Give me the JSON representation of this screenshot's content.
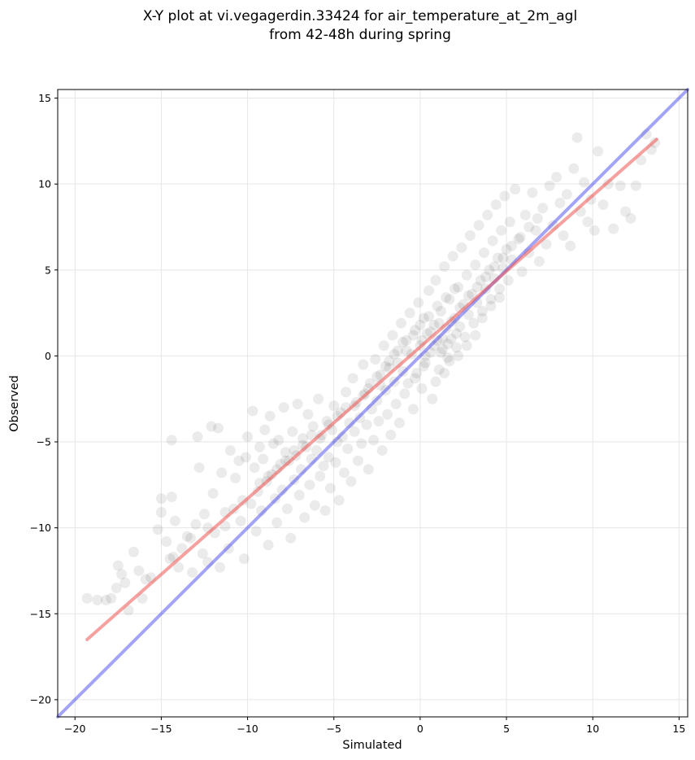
{
  "chart_data": {
    "type": "scatter",
    "title": "X-Y plot at vi.vegagerdin.33424 for air_temperature_at_2m_agl",
    "subtitle": "from 42-48h during spring",
    "xlabel": "Simulated",
    "ylabel": "Observed",
    "xlim": [
      -21,
      15.5
    ],
    "ylim": [
      -21,
      15.5
    ],
    "xticks": [
      -20,
      -15,
      -10,
      -5,
      0,
      5,
      10,
      15
    ],
    "yticks": [
      -20,
      -15,
      -10,
      -5,
      0,
      5,
      10,
      15
    ],
    "xtick_labels": [
      "−20",
      "−15",
      "−10",
      "−5",
      "0",
      "5",
      "10",
      "15"
    ],
    "ytick_labels": [
      "−20",
      "−15",
      "−10",
      "−5",
      "0",
      "5",
      "10",
      "15"
    ],
    "grid": true,
    "point_color": "#000000",
    "point_opacity": 0.08,
    "regression_line": {
      "color": "#ef5350",
      "from": [
        -19.3,
        -16.5
      ],
      "to": [
        13.7,
        12.6
      ]
    },
    "identity_line": {
      "color": "#3333ee",
      "from": [
        -21,
        -21
      ],
      "to": [
        15.5,
        15.5
      ]
    },
    "points": [
      [
        -19.3,
        -14.1
      ],
      [
        -18.7,
        -14.2
      ],
      [
        -18.2,
        -14.2
      ],
      [
        -17.9,
        -14.1
      ],
      [
        -17.6,
        -13.5
      ],
      [
        -17.5,
        -12.2
      ],
      [
        -17.3,
        -12.7
      ],
      [
        -17.1,
        -13.2
      ],
      [
        -16.9,
        -14.8
      ],
      [
        -16.6,
        -11.4
      ],
      [
        -16.3,
        -12.5
      ],
      [
        -16.1,
        -14.1
      ],
      [
        -15.9,
        -13.0
      ],
      [
        -15.6,
        -12.9
      ],
      [
        -15.2,
        -10.1
      ],
      [
        -15.0,
        -8.3
      ],
      [
        -15.0,
        -9.1
      ],
      [
        -14.7,
        -10.8
      ],
      [
        -14.5,
        -11.8
      ],
      [
        -14.4,
        -8.2
      ],
      [
        -14.4,
        -4.9
      ],
      [
        -14.2,
        -9.6
      ],
      [
        -14.0,
        -12.3
      ],
      [
        -13.8,
        -11.2
      ],
      [
        -13.5,
        -10.5
      ],
      [
        -13.2,
        -12.6
      ],
      [
        -13.0,
        -9.8
      ],
      [
        -12.9,
        -4.7
      ],
      [
        -12.8,
        -6.5
      ],
      [
        -12.6,
        -11.5
      ],
      [
        -12.5,
        -9.2
      ],
      [
        -12.3,
        -12.0
      ],
      [
        -12.1,
        -4.1
      ],
      [
        -12.0,
        -8.0
      ],
      [
        -11.9,
        -10.3
      ],
      [
        -11.7,
        -4.2
      ],
      [
        -11.6,
        -12.3
      ],
      [
        -11.5,
        -6.8
      ],
      [
        -11.3,
        -9.9
      ],
      [
        -11.1,
        -11.2
      ],
      [
        -11.0,
        -5.5
      ],
      [
        -10.8,
        -8.9
      ],
      [
        -10.7,
        -7.1
      ],
      [
        -10.5,
        -6.1
      ],
      [
        -10.4,
        -9.6
      ],
      [
        -10.2,
        -11.8
      ],
      [
        -10.1,
        -5.9
      ],
      [
        -10.0,
        -4.7
      ],
      [
        -9.8,
        -8.6
      ],
      [
        -9.7,
        -3.2
      ],
      [
        -9.6,
        -6.5
      ],
      [
        -9.5,
        -10.2
      ],
      [
        -9.4,
        -7.9
      ],
      [
        -9.3,
        -5.3
      ],
      [
        -9.2,
        -9.0
      ],
      [
        -9.1,
        -6.0
      ],
      [
        -9.0,
        -4.3
      ],
      [
        -8.9,
        -7.3
      ],
      [
        -8.8,
        -11.0
      ],
      [
        -8.7,
        -3.5
      ],
      [
        -8.6,
        -6.9
      ],
      [
        -8.5,
        -5.1
      ],
      [
        -8.4,
        -8.3
      ],
      [
        -8.3,
        -9.7
      ],
      [
        -8.2,
        -4.9
      ],
      [
        -8.1,
        -6.3
      ],
      [
        -8.0,
        -7.8
      ],
      [
        -7.9,
        -3.0
      ],
      [
        -7.8,
        -5.6
      ],
      [
        -7.7,
        -8.9
      ],
      [
        -7.6,
        -6.1
      ],
      [
        -7.5,
        -10.6
      ],
      [
        -7.4,
        -4.4
      ],
      [
        -7.3,
        -7.2
      ],
      [
        -7.2,
        -5.8
      ],
      [
        -7.1,
        -2.8
      ],
      [
        -7.0,
        -8.1
      ],
      [
        -6.9,
        -6.6
      ],
      [
        -6.8,
        -4.8
      ],
      [
        -6.7,
        -9.4
      ],
      [
        -6.6,
        -5.3
      ],
      [
        -6.5,
        -3.4
      ],
      [
        -6.4,
        -7.5
      ],
      [
        -6.3,
        -6.0
      ],
      [
        -6.2,
        -4.1
      ],
      [
        -6.1,
        -8.7
      ],
      [
        -6.0,
        -5.5
      ],
      [
        -5.9,
        -2.5
      ],
      [
        -5.8,
        -7.0
      ],
      [
        -5.7,
        -4.6
      ],
      [
        -5.6,
        -6.4
      ],
      [
        -5.5,
        -9.0
      ],
      [
        -5.4,
        -3.8
      ],
      [
        -5.3,
        -5.9
      ],
      [
        -5.2,
        -7.7
      ],
      [
        -5.1,
        -4.3
      ],
      [
        -5.0,
        -2.9
      ],
      [
        -4.9,
        -6.2
      ],
      [
        -4.8,
        -5.0
      ],
      [
        -4.7,
        -8.4
      ],
      [
        -4.6,
        -3.3
      ],
      [
        -4.5,
        -4.7
      ],
      [
        -4.4,
        -6.8
      ],
      [
        -4.3,
        -2.1
      ],
      [
        -4.2,
        -5.4
      ],
      [
        -4.1,
        -3.9
      ],
      [
        -4.0,
        -7.3
      ],
      [
        -3.9,
        -1.3
      ],
      [
        -3.8,
        -4.4
      ],
      [
        -3.7,
        -2.7
      ],
      [
        -3.6,
        -6.1
      ],
      [
        -3.5,
        -3.6
      ],
      [
        -3.4,
        -5.1
      ],
      [
        -3.3,
        -0.5
      ],
      [
        -3.2,
        -2.2
      ],
      [
        -3.1,
        -4.0
      ],
      [
        -3.0,
        -6.6
      ],
      [
        -2.9,
        -1.6
      ],
      [
        -2.8,
        -3.1
      ],
      [
        -2.7,
        -4.9
      ],
      [
        -2.6,
        -0.2
      ],
      [
        -2.5,
        -2.6
      ],
      [
        -2.4,
        -3.8
      ],
      [
        -2.3,
        -1.1
      ],
      [
        -2.2,
        -5.5
      ],
      [
        -2.1,
        0.6
      ],
      [
        -2.0,
        -2.0
      ],
      [
        -1.9,
        -3.4
      ],
      [
        -1.8,
        -0.7
      ],
      [
        -1.7,
        -4.6
      ],
      [
        -1.6,
        1.2
      ],
      [
        -1.5,
        -1.5
      ],
      [
        -1.4,
        -2.8
      ],
      [
        -1.3,
        0.3
      ],
      [
        -1.2,
        -3.9
      ],
      [
        -1.1,
        1.9
      ],
      [
        -1.0,
        -0.9
      ],
      [
        -0.9,
        -2.2
      ],
      [
        -0.8,
        0.9
      ],
      [
        -0.7,
        -1.6
      ],
      [
        -0.6,
        2.5
      ],
      [
        -0.5,
        0.1
      ],
      [
        -0.4,
        -3.1
      ],
      [
        -0.3,
        1.5
      ],
      [
        -0.2,
        -1.0
      ],
      [
        -0.1,
        3.1
      ],
      [
        0.0,
        0.6
      ],
      [
        0.1,
        -1.9
      ],
      [
        0.2,
        2.2
      ],
      [
        0.3,
        -0.4
      ],
      [
        0.4,
        1.3
      ],
      [
        0.5,
        3.8
      ],
      [
        0.6,
        0.2
      ],
      [
        0.7,
        -2.5
      ],
      [
        0.8,
        1.8
      ],
      [
        0.9,
        4.4
      ],
      [
        1.0,
        0.9
      ],
      [
        1.1,
        -0.8
      ],
      [
        1.2,
        2.6
      ],
      [
        1.3,
        0.4
      ],
      [
        1.4,
        5.2
      ],
      [
        1.5,
        1.6
      ],
      [
        1.6,
        -0.1
      ],
      [
        1.7,
        3.3
      ],
      [
        1.8,
        1.0
      ],
      [
        1.9,
        5.8
      ],
      [
        2.0,
        2.2
      ],
      [
        2.1,
        0.5
      ],
      [
        2.2,
        4.0
      ],
      [
        2.3,
        1.7
      ],
      [
        2.4,
        6.3
      ],
      [
        2.5,
        3.0
      ],
      [
        2.6,
        1.1
      ],
      [
        2.7,
        4.7
      ],
      [
        2.8,
        2.4
      ],
      [
        2.9,
        7.0
      ],
      [
        3.0,
        3.6
      ],
      [
        3.1,
        1.9
      ],
      [
        3.2,
        5.3
      ],
      [
        3.3,
        3.1
      ],
      [
        3.4,
        7.6
      ],
      [
        3.5,
        4.4
      ],
      [
        3.6,
        2.6
      ],
      [
        3.7,
        6.0
      ],
      [
        3.8,
        3.9
      ],
      [
        3.9,
        8.2
      ],
      [
        4.0,
        5.0
      ],
      [
        4.1,
        3.3
      ],
      [
        4.2,
        6.7
      ],
      [
        4.3,
        4.5
      ],
      [
        4.4,
        8.8
      ],
      [
        4.5,
        5.7
      ],
      [
        4.6,
        3.9
      ],
      [
        4.7,
        7.3
      ],
      [
        4.8,
        5.1
      ],
      [
        4.9,
        9.3
      ],
      [
        5.0,
        6.2
      ],
      [
        5.1,
        4.4
      ],
      [
        5.2,
        7.8
      ],
      [
        5.3,
        5.6
      ],
      [
        5.5,
        9.7
      ],
      [
        5.7,
        6.8
      ],
      [
        5.9,
        4.9
      ],
      [
        6.1,
        8.2
      ],
      [
        6.3,
        6.0
      ],
      [
        6.5,
        9.5
      ],
      [
        6.7,
        7.3
      ],
      [
        6.9,
        5.5
      ],
      [
        7.1,
        8.6
      ],
      [
        7.3,
        6.5
      ],
      [
        7.5,
        9.9
      ],
      [
        7.7,
        7.6
      ],
      [
        7.9,
        10.4
      ],
      [
        8.1,
        8.9
      ],
      [
        8.3,
        7.0
      ],
      [
        8.5,
        9.4
      ],
      [
        8.7,
        6.4
      ],
      [
        8.9,
        10.9
      ],
      [
        9.1,
        12.7
      ],
      [
        9.3,
        8.4
      ],
      [
        9.5,
        10.1
      ],
      [
        9.7,
        7.8
      ],
      [
        9.9,
        9.1
      ],
      [
        10.1,
        7.3
      ],
      [
        10.3,
        11.9
      ],
      [
        10.6,
        8.8
      ],
      [
        10.9,
        10.0
      ],
      [
        11.2,
        7.4
      ],
      [
        11.6,
        9.9
      ],
      [
        11.9,
        8.4
      ],
      [
        12.2,
        8.0
      ],
      [
        12.5,
        9.9
      ],
      [
        12.8,
        11.4
      ],
      [
        13.1,
        12.9
      ],
      [
        13.4,
        12.0
      ],
      [
        13.6,
        12.4
      ],
      [
        -0.4,
        1.2
      ],
      [
        0.1,
        0.9
      ],
      [
        0.6,
        1.4
      ],
      [
        1.1,
        1.9
      ],
      [
        1.6,
        0.7
      ],
      [
        2.1,
        1.3
      ],
      [
        -1.3,
        -0.4
      ],
      [
        -0.8,
        0.3
      ],
      [
        0.3,
        0.0
      ],
      [
        0.8,
        0.6
      ],
      [
        1.3,
        1.0
      ],
      [
        1.8,
        2.0
      ],
      [
        2.3,
        2.8
      ],
      [
        2.8,
        3.5
      ],
      [
        -2.3,
        -1.7
      ],
      [
        -1.8,
        -0.3
      ],
      [
        -3.3,
        -2.3
      ],
      [
        -4.3,
        -3.0
      ],
      [
        -5.3,
        -4.0
      ],
      [
        -6.3,
        -4.6
      ],
      [
        -7.3,
        -5.5
      ],
      [
        -8.3,
        -6.6
      ],
      [
        -9.3,
        -7.4
      ],
      [
        -10.3,
        -8.4
      ],
      [
        -11.3,
        -9.1
      ],
      [
        -12.3,
        -10.0
      ],
      [
        -13.3,
        -10.6
      ],
      [
        -14.3,
        -11.7
      ],
      [
        -3.8,
        -2.9
      ],
      [
        -4.8,
        -3.5
      ],
      [
        -5.8,
        -4.8
      ],
      [
        -6.8,
        -5.2
      ],
      [
        -7.8,
        -6.1
      ],
      [
        -8.8,
        -7.0
      ],
      [
        3.3,
        4.0
      ],
      [
        3.8,
        4.6
      ],
      [
        4.3,
        5.2
      ],
      [
        4.8,
        5.7
      ],
      [
        5.3,
        6.4
      ],
      [
        5.8,
        6.9
      ],
      [
        6.3,
        7.5
      ],
      [
        6.8,
        8.0
      ],
      [
        0.0,
        1.8
      ],
      [
        0.5,
        2.3
      ],
      [
        1.0,
        2.9
      ],
      [
        1.5,
        3.4
      ],
      [
        2.0,
        3.9
      ],
      [
        -1.0,
        0.8
      ],
      [
        -1.5,
        0.1
      ],
      [
        -2.0,
        -0.6
      ],
      [
        -2.5,
        -1.2
      ],
      [
        -3.0,
        -1.9
      ],
      [
        1.2,
        0.2
      ],
      [
        1.7,
        -0.3
      ],
      [
        2.2,
        0.0
      ],
      [
        2.7,
        0.6
      ],
      [
        3.2,
        1.2
      ],
      [
        0.2,
        -0.6
      ],
      [
        -0.3,
        -1.3
      ],
      [
        0.9,
        -1.5
      ],
      [
        1.4,
        -1.0
      ],
      [
        3.6,
        2.2
      ],
      [
        4.1,
        2.9
      ],
      [
        4.6,
        3.4
      ]
    ]
  }
}
